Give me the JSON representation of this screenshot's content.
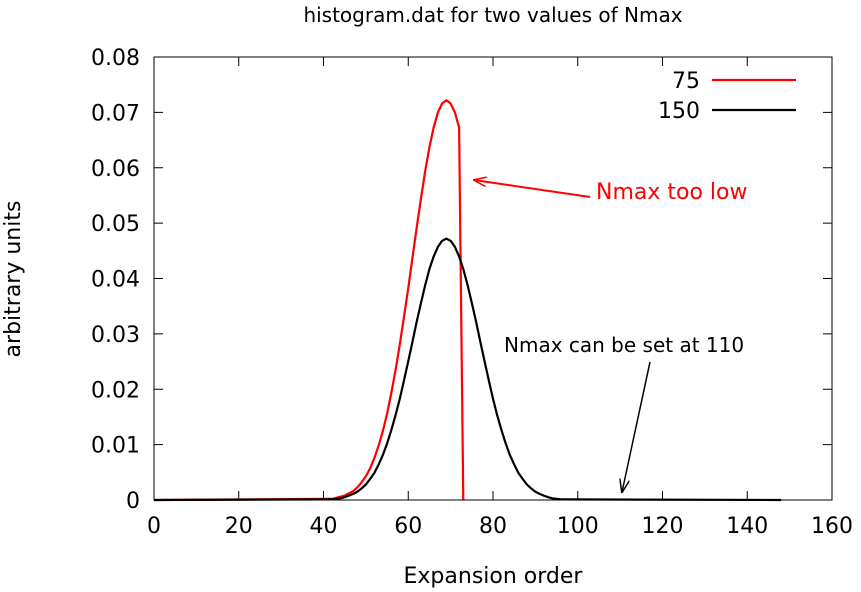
{
  "chart_data": {
    "type": "line",
    "title": "histogram.dat for two values of Nmax",
    "xlabel": "Expansion order",
    "ylabel": "arbitrary units",
    "xlim": [
      0,
      160
    ],
    "ylim": [
      0,
      0.08
    ],
    "xticks": [
      0,
      20,
      40,
      60,
      80,
      100,
      120,
      140,
      160
    ],
    "yticks": [
      0,
      0.01,
      0.02,
      0.03,
      0.04,
      0.05,
      0.06,
      0.07,
      0.08
    ],
    "xtick_labels": [
      "0",
      "20",
      "40",
      "60",
      "80",
      "100",
      "120",
      "140",
      "160"
    ],
    "ytick_labels": [
      "0",
      "0.01",
      "0.02",
      "0.03",
      "0.04",
      "0.05",
      "0.06",
      "0.07",
      "0.08"
    ],
    "grid": false,
    "legend_position": "top-right",
    "series": [
      {
        "name": "75",
        "color": "#ff0000",
        "x": [
          0,
          41,
          42,
          43,
          44,
          45,
          46,
          47,
          48,
          49,
          50,
          51,
          52,
          53,
          54,
          55,
          56,
          57,
          58,
          59,
          60,
          61,
          62,
          63,
          64,
          65,
          66,
          67,
          68,
          69,
          70,
          71,
          72,
          73
        ],
        "y": [
          0,
          0.0002,
          0.0002,
          0.0004,
          0.0006,
          0.0008,
          0.0012,
          0.0016,
          0.0023,
          0.0032,
          0.0043,
          0.0057,
          0.0076,
          0.0098,
          0.0124,
          0.0156,
          0.0193,
          0.0234,
          0.0281,
          0.0331,
          0.0383,
          0.0438,
          0.0492,
          0.0545,
          0.0594,
          0.0637,
          0.0673,
          0.07,
          0.0716,
          0.0722,
          0.0716,
          0.07,
          0.0673,
          0
        ]
      },
      {
        "name": "150",
        "color": "#000000",
        "x": [
          0,
          41,
          42,
          43,
          44,
          45,
          46,
          47,
          48,
          49,
          50,
          51,
          52,
          53,
          54,
          55,
          56,
          57,
          58,
          59,
          60,
          61,
          62,
          63,
          64,
          65,
          66,
          67,
          68,
          69,
          70,
          71,
          72,
          73,
          74,
          75,
          76,
          77,
          78,
          79,
          80,
          81,
          82,
          83,
          84,
          85,
          86,
          87,
          88,
          89,
          90,
          91,
          92,
          93,
          94,
          95,
          96,
          97,
          148
        ],
        "y": [
          0,
          0.0001,
          0.0001,
          0.0002,
          0.0003,
          0.0005,
          0.0008,
          0.0011,
          0.0015,
          0.0021,
          0.0028,
          0.0038,
          0.0049,
          0.0064,
          0.0081,
          0.0102,
          0.0126,
          0.0153,
          0.0183,
          0.0216,
          0.0251,
          0.0286,
          0.0322,
          0.0356,
          0.0388,
          0.0417,
          0.044,
          0.0457,
          0.0468,
          0.0472,
          0.0468,
          0.0457,
          0.044,
          0.0417,
          0.0388,
          0.0356,
          0.0322,
          0.0286,
          0.0251,
          0.0216,
          0.0183,
          0.0153,
          0.0126,
          0.0102,
          0.0081,
          0.0064,
          0.0049,
          0.0038,
          0.0028,
          0.0021,
          0.0015,
          0.0011,
          0.0008,
          0.0005,
          0.0003,
          0.0002,
          0.0001,
          0.0001,
          0
        ]
      }
    ],
    "annotations": [
      {
        "text": "Nmax too low",
        "color": "#ff0000"
      },
      {
        "text": "Nmax can be set at 110",
        "color": "#000000"
      }
    ]
  }
}
